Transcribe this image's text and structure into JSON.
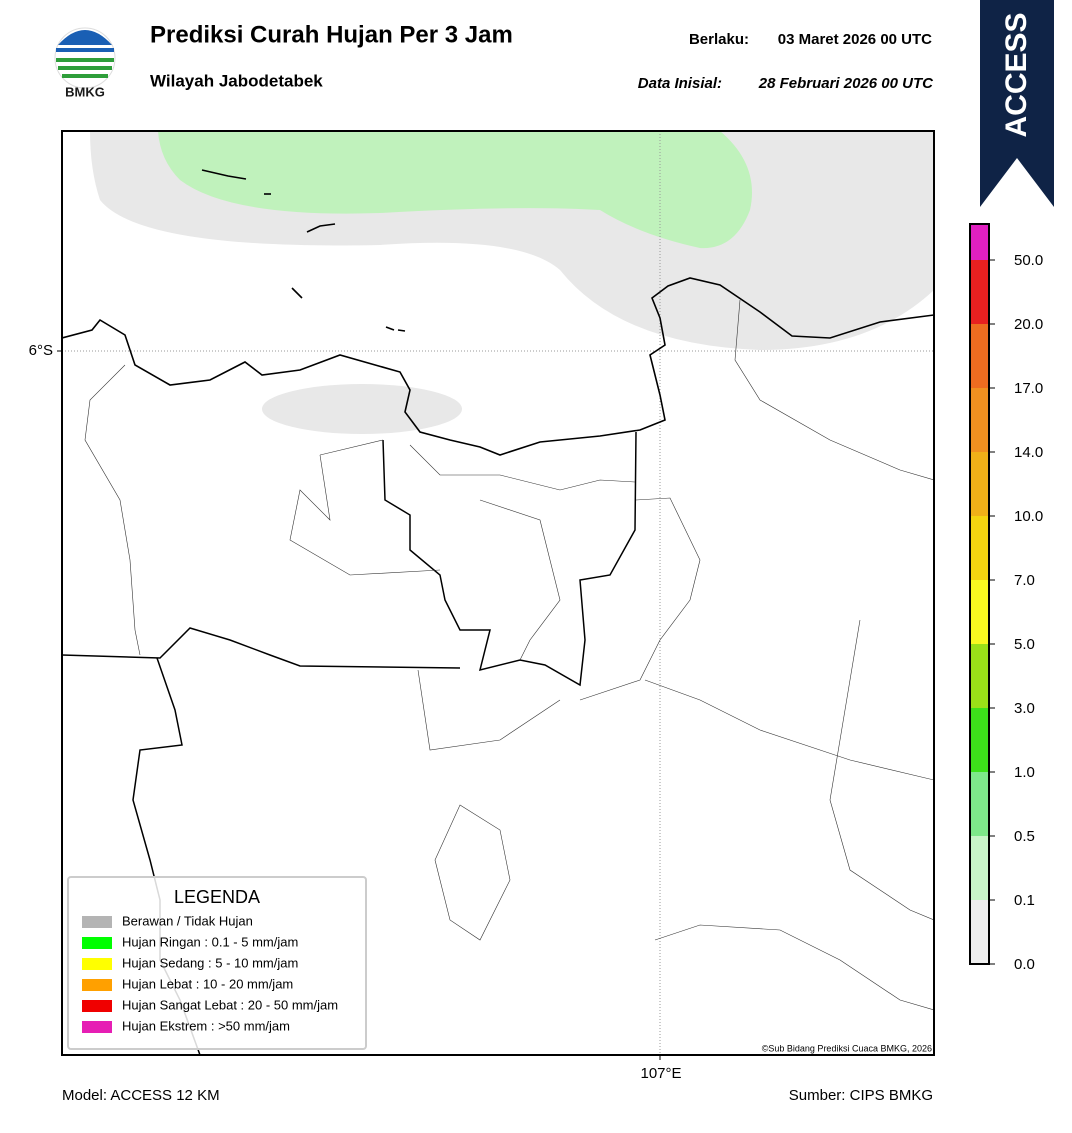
{
  "logo": {
    "label": "BMKG"
  },
  "header": {
    "title": "Prediksi Curah Hujan Per 3 Jam",
    "subtitle": "Wilayah Jabodetabek",
    "valid_label": "Berlaku:",
    "valid": "03 Maret 2026 00 UTC",
    "init_label": "Data Inisial:",
    "init": "28 Februari 2026 00 UTC"
  },
  "badge": "ACCESS",
  "map": {
    "lat_label": "6°S",
    "lon_label": "107°E",
    "copyright": "©Sub Bidang Prediksi Cuaca BMKG, 2026"
  },
  "legend": {
    "title": "LEGENDA",
    "items": [
      {
        "label": "Berawan / Tidak Hujan",
        "color": "#b4b4b4"
      },
      {
        "label": "Hujan Ringan : 0.1 - 5 mm/jam",
        "color": "#00ff00"
      },
      {
        "label": "Hujan Sedang : 5 - 10 mm/jam",
        "color": "#ffff00"
      },
      {
        "label": "Hujan Lebat : 10 - 20 mm/jam",
        "color": "#ffa000"
      },
      {
        "label": "Hujan Sangat Lebat : 20 - 50 mm/jam",
        "color": "#f00000"
      },
      {
        "label": "Hujan Ekstrem : >50 mm/jam",
        "color": "#e61eb4"
      }
    ]
  },
  "colorbar": {
    "labels": [
      "0.0",
      "0.1",
      "0.5",
      "1.0",
      "3.0",
      "5.0",
      "7.0",
      "10.0",
      "14.0",
      "17.0",
      "20.0",
      "50.0"
    ]
  },
  "footer": {
    "model": "Model: ACCESS 12 KM",
    "source": "Sumber: CIPS BMKG"
  }
}
